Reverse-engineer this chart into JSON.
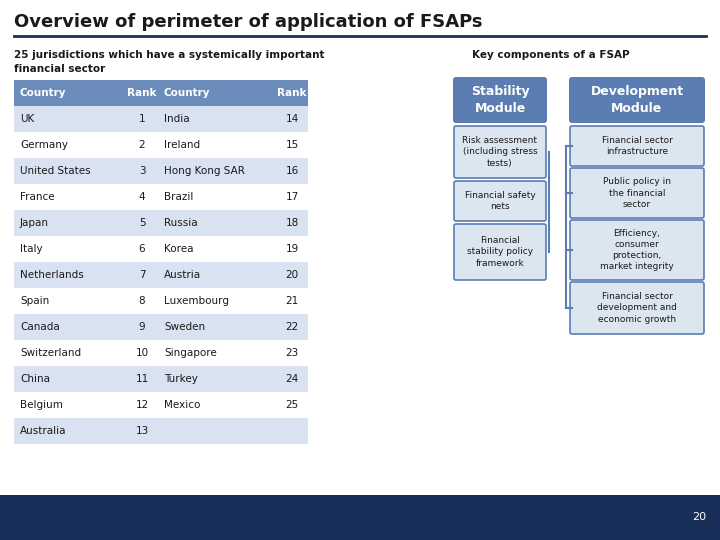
{
  "title": "Overview of perimeter of application of FSAPs",
  "subtitle": "25 jurisdictions which have a systemically important\nfinancial sector",
  "key_components_label": "Key components of a FSAP",
  "table_headers": [
    "Country",
    "Rank",
    "Country",
    "Rank"
  ],
  "left_countries": [
    "UK",
    "Germany",
    "United States",
    "France",
    "Japan",
    "Italy",
    "Netherlands",
    "Spain",
    "Canada",
    "Switzerland",
    "China",
    "Belgium",
    "Australia"
  ],
  "left_ranks": [
    "1",
    "2",
    "3",
    "4",
    "5",
    "6",
    "7",
    "8",
    "9",
    "10",
    "11",
    "12",
    "13"
  ],
  "right_countries": [
    "India",
    "Ireland",
    "Hong Kong SAR",
    "Brazil",
    "Russia",
    "Korea",
    "Austria",
    "Luxembourg",
    "Sweden",
    "Singapore",
    "Turkey",
    "Mexico",
    ""
  ],
  "right_ranks": [
    "14",
    "15",
    "16",
    "17",
    "18",
    "19",
    "20",
    "21",
    "22",
    "23",
    "24",
    "25",
    ""
  ],
  "stability_module_label": "Stability\nModule",
  "development_module_label": "Development\nModule",
  "stability_items": [
    "Risk assessment\n(including stress\ntests)",
    "Financial safety\nnets",
    "Financial\nstability policy\nframework"
  ],
  "development_items": [
    "Financial sector\ninfrastructure",
    "Public policy in\nthe financial\nsector",
    "Efficiency,\nconsumer\nprotection,\nmarket integrity",
    "Financial sector\ndevelopment and\neconomic growth"
  ],
  "header_bg": "#6b8cba",
  "header_text": "#ffffff",
  "row_odd_bg": "#d9e2f0",
  "row_even_bg": "#ffffff",
  "title_color": "#1a1a1a",
  "module_header_bg": "#5b7db1",
  "module_box_bg": "#dce6f1",
  "module_box_border": "#5b7db1",
  "footer_bg": "#1a2e5a",
  "footer_text": "#ffffff",
  "page_number": "20",
  "title_line_color": "#1a2e5a",
  "background_color": "#ffffff"
}
